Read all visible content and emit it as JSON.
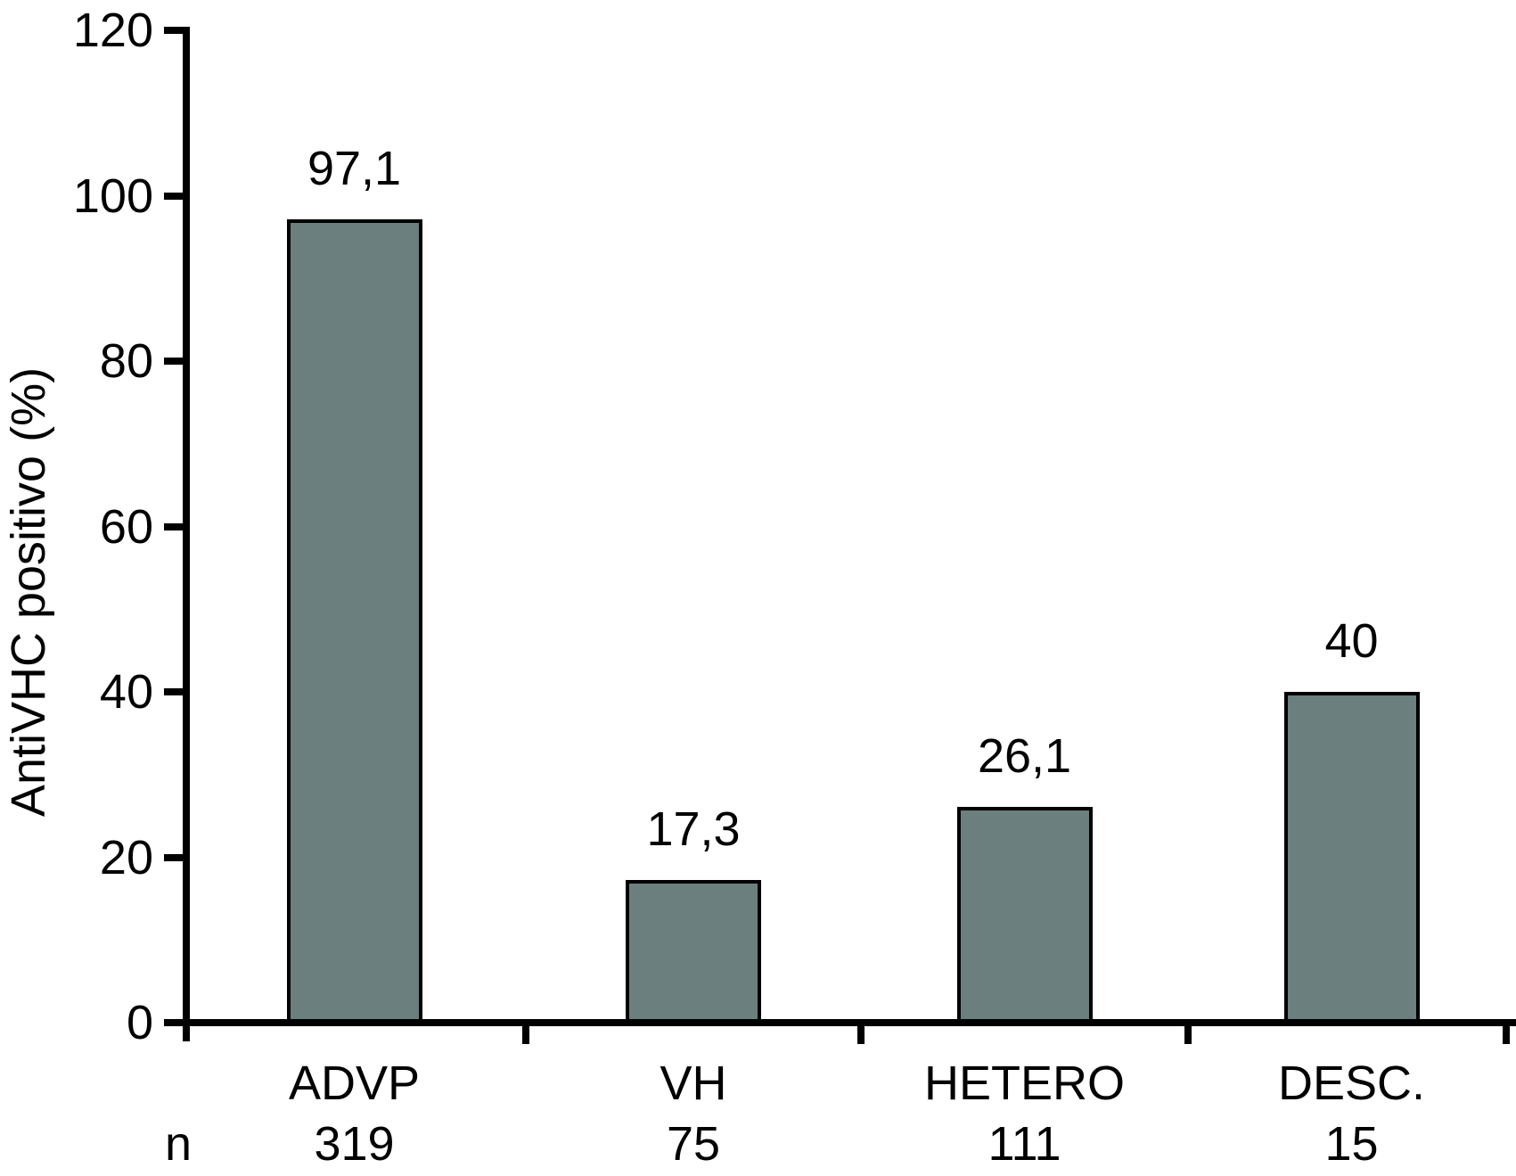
{
  "chart_data": {
    "type": "bar",
    "title": "",
    "ylabel": "AntiVHC positivo (%)",
    "xlabel": "",
    "ylim": [
      0,
      120
    ],
    "yticks": [
      0,
      20,
      40,
      60,
      80,
      100,
      120
    ],
    "grid": false,
    "legend": null,
    "categories": [
      "ADVP",
      "VH",
      "HETERO",
      "DESC."
    ],
    "values": [
      97.1,
      17.3,
      26.1,
      40
    ],
    "value_labels": [
      "97,1",
      "17,3",
      "26,1",
      "40"
    ],
    "n_row": {
      "label": "n",
      "values": [
        "319",
        "75",
        "111",
        "15"
      ]
    },
    "colors": {
      "bar_fill": "#6a7f7e",
      "bar_outline": "#000000",
      "axis": "#000000",
      "text": "#000000",
      "background": "#ffffff"
    }
  }
}
